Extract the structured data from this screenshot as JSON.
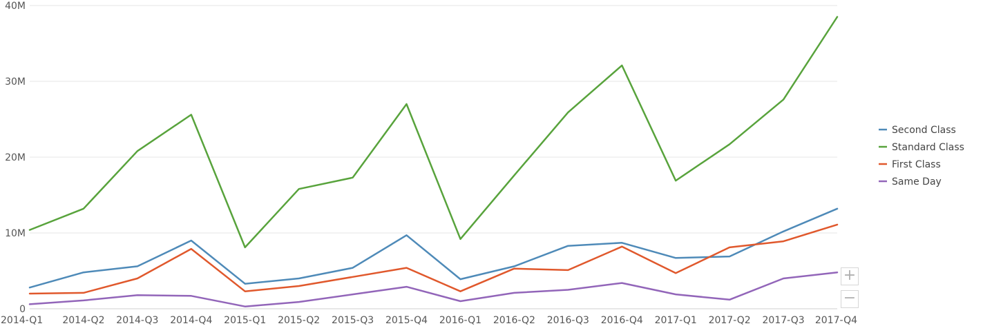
{
  "chart_data": {
    "type": "line",
    "title": "",
    "xlabel": "",
    "ylabel": "",
    "categories": [
      "2014-Q1",
      "2014-Q2",
      "2014-Q3",
      "2014-Q4",
      "2015-Q1",
      "2015-Q2",
      "2015-Q3",
      "2015-Q4",
      "2016-Q1",
      "2016-Q2",
      "2016-Q3",
      "2016-Q4",
      "2017-Q1",
      "2017-Q2",
      "2017-Q3",
      "2017-Q4"
    ],
    "ylim": [
      0,
      40000000
    ],
    "yticks": [
      0,
      10000000,
      20000000,
      30000000,
      40000000
    ],
    "ytick_labels": [
      "0",
      "10M",
      "20M",
      "30M",
      "40M"
    ],
    "grid": true,
    "legend_position": "right",
    "series": [
      {
        "name": "Second Class",
        "color": "#4e8ab8",
        "values": [
          2800000,
          4800000,
          5600000,
          9000000,
          3300000,
          4000000,
          5400000,
          9700000,
          3900000,
          5600000,
          8300000,
          8700000,
          6700000,
          6900000,
          10200000,
          13200000
        ]
      },
      {
        "name": "Standard Class",
        "color": "#58a33c",
        "values": [
          10400000,
          13200000,
          20800000,
          25600000,
          8100000,
          15800000,
          17300000,
          27000000,
          9200000,
          17600000,
          25900000,
          32100000,
          16900000,
          21700000,
          27600000,
          38500000
        ]
      },
      {
        "name": "First Class",
        "color": "#e0582c",
        "values": [
          2000000,
          2100000,
          4000000,
          7900000,
          2300000,
          3000000,
          4200000,
          5400000,
          2300000,
          5300000,
          5100000,
          8200000,
          4700000,
          8100000,
          8900000,
          11100000
        ]
      },
      {
        "name": "Same Day",
        "color": "#9265b9",
        "values": [
          600000,
          1100000,
          1800000,
          1700000,
          300000,
          900000,
          1900000,
          2900000,
          1000000,
          2100000,
          2500000,
          3400000,
          1900000,
          1200000,
          4000000,
          4800000
        ]
      }
    ]
  },
  "controls": {
    "zoom_in_label": "+",
    "zoom_out_label": "−"
  }
}
